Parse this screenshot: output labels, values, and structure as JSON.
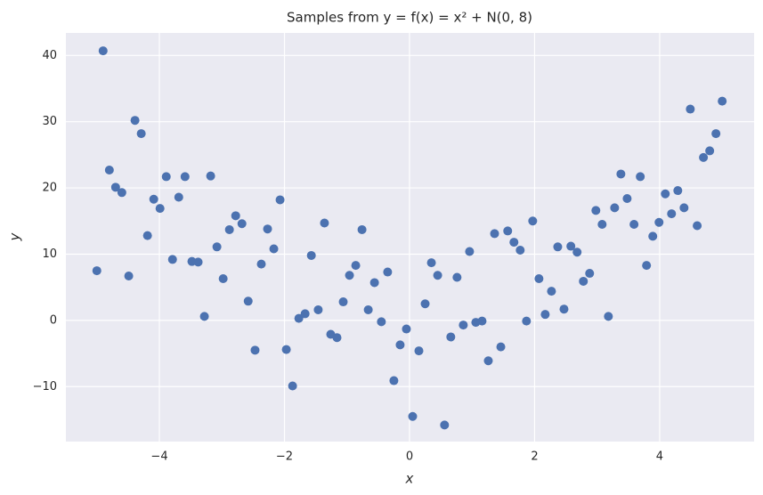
{
  "chart_data": {
    "type": "scatter",
    "title": "Samples from y = f(x) = x² + N(0, 8)",
    "x_label": "x",
    "y_label": "y",
    "x": [
      -5,
      -4.9,
      -4.8,
      -4.7,
      -4.6,
      -4.49,
      -4.39,
      -4.29,
      -4.19,
      -4.09,
      -3.99,
      -3.89,
      -3.79,
      -3.69,
      -3.59,
      -3.48,
      -3.38,
      -3.28,
      -3.18,
      -3.08,
      -2.98,
      -2.88,
      -2.78,
      -2.68,
      -2.58,
      -2.47,
      -2.37,
      -2.27,
      -2.17,
      -2.07,
      -1.97,
      -1.87,
      -1.77,
      -1.67,
      -1.57,
      -1.46,
      -1.36,
      -1.26,
      -1.16,
      -1.06,
      -0.96,
      -0.86,
      -0.76,
      -0.66,
      -0.56,
      -0.45,
      -0.35,
      -0.25,
      -0.15,
      -0.05,
      0.05,
      0.15,
      0.25,
      0.35,
      0.45,
      0.56,
      0.66,
      0.76,
      0.86,
      0.96,
      1.06,
      1.16,
      1.26,
      1.36,
      1.46,
      1.57,
      1.67,
      1.77,
      1.87,
      1.97,
      2.07,
      2.17,
      2.27,
      2.37,
      2.47,
      2.58,
      2.68,
      2.78,
      2.88,
      2.98,
      3.08,
      3.18,
      3.28,
      3.38,
      3.48,
      3.59,
      3.69,
      3.79,
      3.89,
      3.99,
      4.09,
      4.19,
      4.29,
      4.39,
      4.49,
      4.6,
      4.7,
      4.8,
      4.9,
      5
    ],
    "values": [
      7.5,
      40.7,
      22.7,
      20.1,
      19.3,
      6.7,
      30.2,
      28.2,
      12.8,
      18.3,
      16.9,
      21.7,
      9.2,
      18.6,
      21.7,
      8.9,
      8.8,
      0.6,
      21.8,
      11.1,
      6.3,
      13.7,
      15.8,
      14.6,
      2.9,
      -4.5,
      8.5,
      13.8,
      10.8,
      18.2,
      -4.4,
      -9.9,
      0.3,
      1.0,
      9.8,
      1.6,
      14.7,
      -2.1,
      -2.6,
      2.8,
      6.8,
      8.3,
      13.7,
      1.6,
      5.7,
      -0.2,
      7.3,
      -9.1,
      -3.7,
      -1.3,
      -14.5,
      -4.6,
      2.5,
      8.7,
      6.8,
      -15.8,
      -2.5,
      6.5,
      -0.7,
      10.4,
      -0.3,
      -0.1,
      -6.1,
      13.1,
      -4.0,
      13.5,
      11.8,
      10.6,
      -0.1,
      15.0,
      6.3,
      0.9,
      4.4,
      11.1,
      1.7,
      11.2,
      10.3,
      5.9,
      7.1,
      16.6,
      14.5,
      0.6,
      17.0,
      22.1,
      18.4,
      14.5,
      21.7,
      8.3,
      12.7,
      14.8,
      19.1,
      16.1,
      19.6,
      17.0,
      31.9,
      14.3,
      24.6,
      25.6,
      28.2,
      33.1
    ],
    "color": "#4c72b0",
    "xlim": [
      -5.495,
      5.51
    ],
    "ylim": [
      -18.3,
      43.4
    ],
    "xticks": [
      {
        "value": -4,
        "label": "−4"
      },
      {
        "value": -2,
        "label": "−2"
      },
      0,
      2,
      4
    ],
    "yticks": [
      {
        "value": -10,
        "label": "−10"
      },
      0,
      10,
      20,
      30,
      40
    ],
    "grid": true
  }
}
